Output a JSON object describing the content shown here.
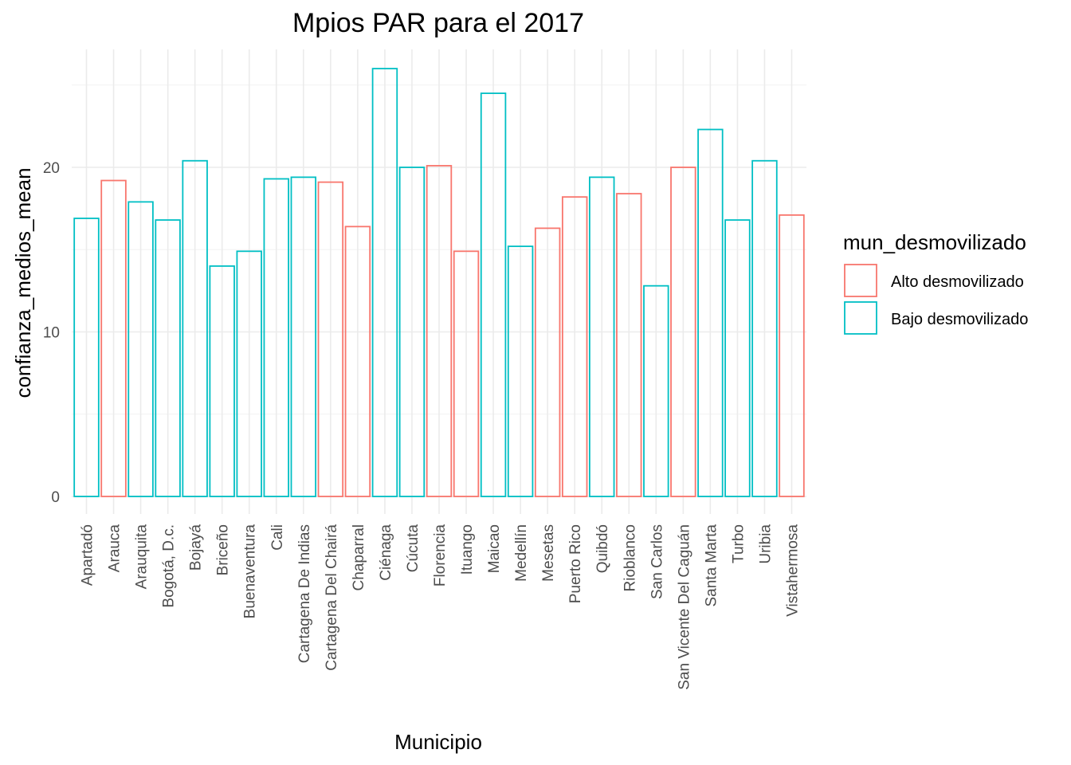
{
  "chart_data": {
    "type": "bar",
    "title": "Mpios PAR para el 2017",
    "xlabel": "Municipio",
    "ylabel": "confianza_medios_mean",
    "ylim": [
      -0.9,
      27.2
    ],
    "yticks": [
      0,
      10,
      20
    ],
    "grid": true,
    "legend_position": "right",
    "legend": {
      "title": "mun_desmovilizado",
      "entries": [
        {
          "label": "Alto desmovilizado",
          "color": "#F8766D"
        },
        {
          "label": "Bajo desmovilizado",
          "color": "#00BFC4"
        }
      ]
    },
    "categories": [
      "Apartadó",
      "Arauca",
      "Arauquita",
      "Bogotá, D.c.",
      "Bojayá",
      "Briceño",
      "Buenaventura",
      "Cali",
      "Cartagena De Indias",
      "Cartagena Del Chairá",
      "Chaparral",
      "Ciénaga",
      "Cúcuta",
      "Florencia",
      "Ituango",
      "Maicao",
      "Medellín",
      "Mesetas",
      "Puerto Rico",
      "Quibdó",
      "Rioblanco",
      "San Carlos",
      "San Vicente Del Caguán",
      "Santa Marta",
      "Turbo",
      "Uribia",
      "Vistahermosa"
    ],
    "values": [
      16.9,
      19.2,
      17.9,
      16.8,
      20.4,
      14.0,
      14.9,
      19.3,
      19.4,
      19.1,
      16.4,
      26.0,
      20.0,
      20.1,
      14.9,
      24.5,
      15.2,
      16.3,
      18.2,
      19.4,
      18.4,
      12.8,
      20.0,
      22.3,
      16.8,
      20.4,
      17.1
    ],
    "groups": [
      "Bajo desmovilizado",
      "Alto desmovilizado",
      "Bajo desmovilizado",
      "Bajo desmovilizado",
      "Bajo desmovilizado",
      "Bajo desmovilizado",
      "Bajo desmovilizado",
      "Bajo desmovilizado",
      "Bajo desmovilizado",
      "Alto desmovilizado",
      "Alto desmovilizado",
      "Bajo desmovilizado",
      "Bajo desmovilizado",
      "Alto desmovilizado",
      "Alto desmovilizado",
      "Bajo desmovilizado",
      "Bajo desmovilizado",
      "Alto desmovilizado",
      "Alto desmovilizado",
      "Bajo desmovilizado",
      "Alto desmovilizado",
      "Bajo desmovilizado",
      "Alto desmovilizado",
      "Bajo desmovilizado",
      "Bajo desmovilizado",
      "Bajo desmovilizado",
      "Alto desmovilizado"
    ]
  }
}
